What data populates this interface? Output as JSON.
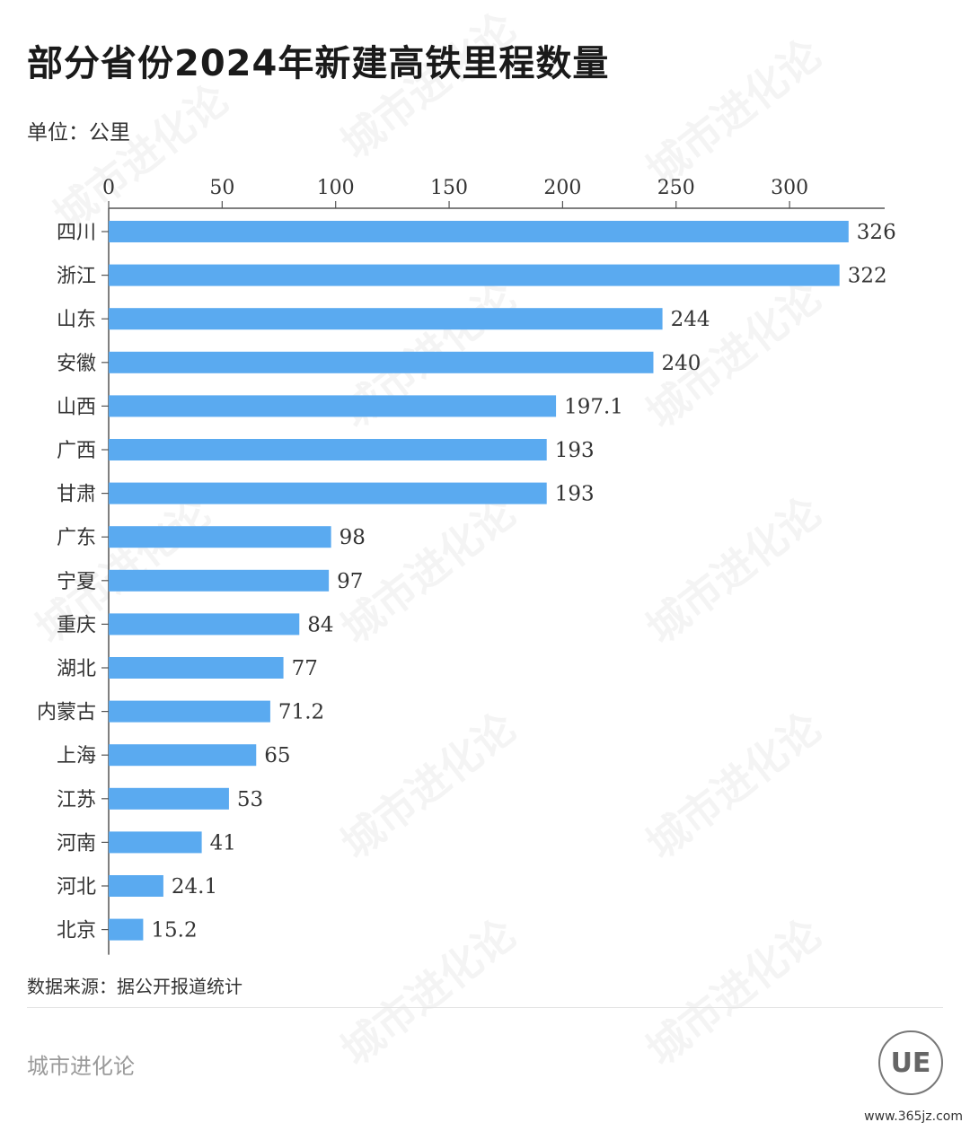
{
  "header": {
    "title": "部分省份2024年新建高铁里程数量",
    "unit_label": "单位：公里"
  },
  "footer": {
    "source": "数据来源：据公开报道统计",
    "brand": "城市进化论",
    "logo_text": "UE",
    "site": "www.365jz.com"
  },
  "watermark": "城市进化论",
  "colors": {
    "bar": "#5aaaf0",
    "axis": "#555555"
  },
  "chart_data": {
    "type": "bar",
    "orientation": "horizontal",
    "title": "部分省份2024年新建高铁里程数量",
    "xlabel": "",
    "ylabel": "",
    "unit": "公里",
    "xlim": [
      0,
      340
    ],
    "xticks": [
      0,
      50,
      100,
      150,
      200,
      250,
      300
    ],
    "axis_position": "top",
    "grid": false,
    "categories": [
      "四川",
      "浙江",
      "山东",
      "安徽",
      "山西",
      "广西",
      "甘肃",
      "广东",
      "宁夏",
      "重庆",
      "湖北",
      "内蒙古",
      "上海",
      "江苏",
      "河南",
      "河北",
      "北京"
    ],
    "values": [
      326,
      322,
      244,
      240,
      197.1,
      193,
      193,
      98,
      97,
      84,
      77,
      71.2,
      65,
      53,
      41,
      24.1,
      15.2
    ],
    "value_labels": [
      "326",
      "322",
      "244",
      "240",
      "197.1",
      "193",
      "193",
      "98",
      "97",
      "84",
      "77",
      "71.2",
      "65",
      "53",
      "41",
      "24.1",
      "15.2"
    ]
  }
}
